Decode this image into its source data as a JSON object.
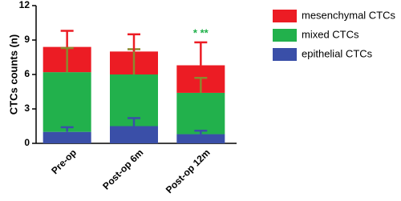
{
  "chart_data": {
    "type": "stacked_bar",
    "ylabel": "CTCs counts (n)",
    "categories": [
      "Pre-op",
      "Post-op 6m",
      "Post-op 12m"
    ],
    "series": [
      {
        "name": "epithelial CTCs",
        "color": "#3a4fa8",
        "errcolor": "#3a4fa8",
        "values": [
          1.0,
          1.5,
          0.8
        ],
        "errors": [
          0.4,
          0.7,
          0.3
        ]
      },
      {
        "name": "mixed CTCs",
        "color": "#22b14c",
        "errcolor": "#8a8a2e",
        "values": [
          5.2,
          4.5,
          3.6
        ],
        "errors": [
          2.1,
          2.2,
          1.3
        ]
      },
      {
        "name": "mesenchymal CTCs",
        "color": "#ec1c24",
        "errcolor": "#ec1c24",
        "values": [
          2.2,
          2.0,
          2.4
        ],
        "errors": [
          1.4,
          1.5,
          2.0
        ]
      }
    ],
    "annotation": "* **",
    "annotation_color": "#22b14c",
    "ylim": [
      0,
      12
    ],
    "yticks": [
      0,
      3,
      6,
      9,
      12
    ]
  }
}
